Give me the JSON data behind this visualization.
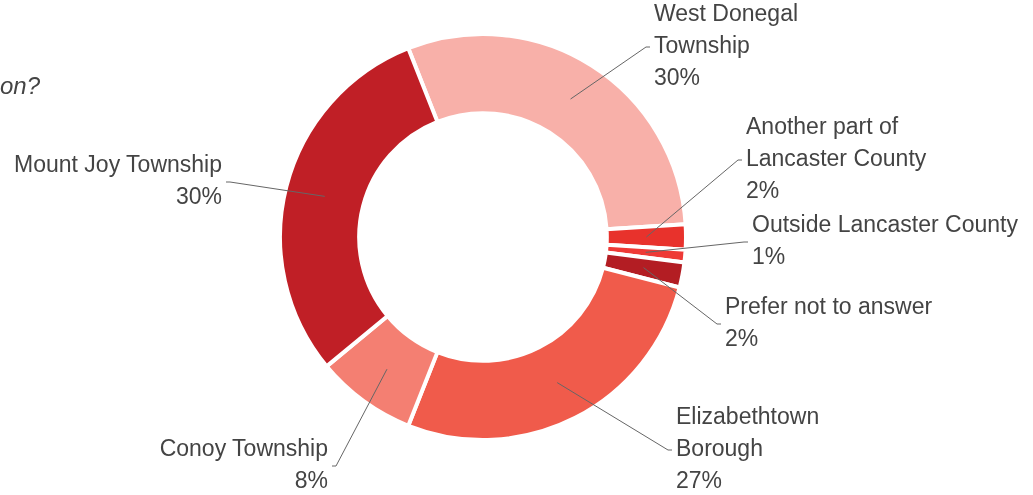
{
  "chart_data": {
    "type": "donut",
    "title": "on?",
    "categories": [
      "West Donegal Township",
      "Another part of Lancaster County",
      "Outside Lancaster County",
      "Prefer not to answer",
      "Elizabethtown Borough",
      "Conoy Township",
      "Mount Joy Township"
    ],
    "values": [
      30,
      2,
      1,
      2,
      27,
      8,
      30
    ],
    "colors": [
      "#f8b0a9",
      "#e8322c",
      "#ee3a36",
      "#b31d23",
      "#f05b4b",
      "#f47f72",
      "#c01f26"
    ],
    "value_labels": [
      "30%",
      "2%",
      "1%",
      "2%",
      "27%",
      "8%",
      "30%"
    ],
    "legend": false
  }
}
